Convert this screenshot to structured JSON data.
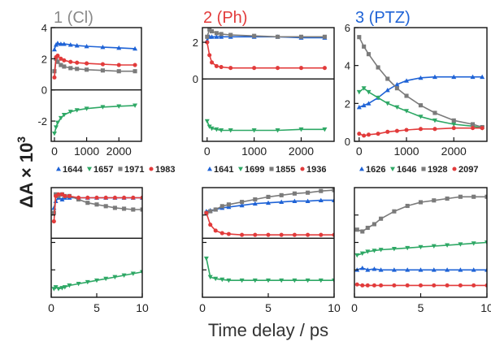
{
  "colors": {
    "blue": "#1f63d6",
    "green": "#2ea865",
    "gray": "#7b7b7b",
    "red": "#e23b3b",
    "title_gray": "#8a8a8a",
    "title_red": "#e23b3b",
    "title_blue": "#1f63d6"
  },
  "figure": {
    "ylabel_prefix": "ΔA × 10",
    "ylabel_exp": "3",
    "xlabel": "Time delay / ps",
    "panel_titles": [
      {
        "text": "1 (Cl)",
        "color": "#8a8a8a"
      },
      {
        "text": "2 (Ph)",
        "color": "#e23b3b"
      },
      {
        "text": "3 (PTZ)",
        "color": "#1f63d6"
      }
    ]
  },
  "chart_data": [
    {
      "type": "scatter",
      "title": "1 (Cl)",
      "xlim": [
        -100,
        2700
      ],
      "ylim": [
        -3.3,
        4
      ],
      "xticks": [
        0,
        1000,
        2000
      ],
      "xtick_labels": [
        "0",
        "1000",
        "2000"
      ],
      "yticks": [
        -2,
        0,
        2,
        4
      ],
      "ytick_labels": [
        "-2",
        "0",
        "2",
        "4"
      ],
      "zero_line": true,
      "legend": [
        "1644",
        "1657",
        "1971",
        "1983"
      ],
      "series": [
        {
          "name": "1644",
          "color": "#1f63d6",
          "marker": "triangle",
          "x": [
            0,
            50,
            100,
            200,
            300,
            500,
            700,
            1000,
            1500,
            2000,
            2500
          ],
          "y": [
            2.6,
            2.9,
            3.0,
            2.95,
            2.95,
            2.9,
            2.85,
            2.8,
            2.75,
            2.7,
            2.65
          ]
        },
        {
          "name": "1657",
          "color": "#2ea865",
          "marker": "triangle-down",
          "x": [
            0,
            50,
            100,
            200,
            300,
            500,
            700,
            1000,
            1500,
            2000,
            2500
          ],
          "y": [
            -2.8,
            -2.4,
            -2.1,
            -1.8,
            -1.6,
            -1.4,
            -1.3,
            -1.2,
            -1.1,
            -1.05,
            -1.0
          ]
        },
        {
          "name": "1971",
          "color": "#7b7b7b",
          "marker": "square",
          "x": [
            0,
            50,
            100,
            200,
            300,
            500,
            700,
            1000,
            1500,
            2000,
            2500
          ],
          "y": [
            1.2,
            2.0,
            1.8,
            1.6,
            1.5,
            1.4,
            1.35,
            1.3,
            1.25,
            1.2,
            1.2
          ]
        },
        {
          "name": "1983",
          "color": "#e23b3b",
          "marker": "circle",
          "x": [
            0,
            50,
            100,
            200,
            300,
            500,
            700,
            1000,
            1500,
            2000,
            2500
          ],
          "y": [
            0.8,
            2.1,
            2.2,
            2.0,
            1.9,
            1.8,
            1.75,
            1.7,
            1.65,
            1.6,
            1.6
          ]
        }
      ]
    },
    {
      "type": "scatter",
      "title": "2 (Ph)",
      "xlim": [
        -100,
        2700
      ],
      "ylim": [
        -3.4,
        2.8
      ],
      "xticks": [
        0,
        1000,
        2000
      ],
      "xtick_labels": [
        "0",
        "1000",
        "2000"
      ],
      "yticks": [
        0,
        2
      ],
      "ytick_labels": [
        "0",
        "2"
      ],
      "zero_line": true,
      "legend": [
        "1641",
        "1699",
        "1855",
        "1936"
      ],
      "series": [
        {
          "name": "1641",
          "color": "#1f63d6",
          "marker": "triangle",
          "x": [
            0,
            50,
            100,
            200,
            300,
            500,
            1000,
            1500,
            2000,
            2500
          ],
          "y": [
            2.1,
            2.3,
            2.3,
            2.3,
            2.3,
            2.3,
            2.3,
            2.3,
            2.25,
            2.25
          ]
        },
        {
          "name": "1699",
          "color": "#2ea865",
          "marker": "triangle-down",
          "x": [
            0,
            50,
            100,
            200,
            300,
            500,
            1000,
            1500,
            2000,
            2500
          ],
          "y": [
            -2.3,
            -2.6,
            -2.7,
            -2.75,
            -2.8,
            -2.8,
            -2.8,
            -2.8,
            -2.75,
            -2.75
          ]
        },
        {
          "name": "1855",
          "color": "#7b7b7b",
          "marker": "square",
          "x": [
            0,
            50,
            100,
            200,
            300,
            500,
            1000,
            1500,
            2000,
            2500
          ],
          "y": [
            2.3,
            2.7,
            2.6,
            2.5,
            2.45,
            2.4,
            2.35,
            2.3,
            2.3,
            2.3
          ]
        },
        {
          "name": "1936",
          "color": "#e23b3b",
          "marker": "circle",
          "x": [
            0,
            50,
            100,
            200,
            300,
            500,
            1000,
            1500,
            2000,
            2500
          ],
          "y": [
            2.0,
            1.3,
            0.9,
            0.7,
            0.65,
            0.6,
            0.6,
            0.6,
            0.6,
            0.6
          ]
        }
      ]
    },
    {
      "type": "scatter",
      "title": "3 (PTZ)",
      "xlim": [
        -100,
        2700
      ],
      "ylim": [
        0,
        6
      ],
      "xticks": [
        0,
        1000,
        2000
      ],
      "xtick_labels": [
        "0",
        "1000",
        "2000"
      ],
      "yticks": [
        0,
        2,
        4,
        6
      ],
      "ytick_labels": [
        "0",
        "2",
        "4",
        "6"
      ],
      "zero_line": false,
      "legend": [
        "1626",
        "1646",
        "1928",
        "2097"
      ],
      "series": [
        {
          "name": "1626",
          "color": "#1f63d6",
          "marker": "triangle",
          "x": [
            0,
            100,
            200,
            400,
            600,
            800,
            1000,
            1300,
            1600,
            2000,
            2400,
            2600
          ],
          "y": [
            1.8,
            1.9,
            2.0,
            2.3,
            2.7,
            3.0,
            3.2,
            3.35,
            3.4,
            3.4,
            3.4,
            3.4
          ]
        },
        {
          "name": "1646",
          "color": "#2ea865",
          "marker": "triangle-down",
          "x": [
            0,
            100,
            200,
            400,
            600,
            800,
            1000,
            1300,
            1600,
            2000,
            2400,
            2600
          ],
          "y": [
            2.6,
            2.8,
            2.6,
            2.3,
            2.0,
            1.8,
            1.6,
            1.3,
            1.1,
            0.9,
            0.8,
            0.7
          ]
        },
        {
          "name": "1928",
          "color": "#7b7b7b",
          "marker": "square",
          "x": [
            0,
            100,
            200,
            400,
            600,
            800,
            1000,
            1300,
            1600,
            2000,
            2400,
            2600
          ],
          "y": [
            5.5,
            5.0,
            4.6,
            3.9,
            3.3,
            2.8,
            2.4,
            1.9,
            1.5,
            1.1,
            0.9,
            0.75
          ]
        },
        {
          "name": "2097",
          "color": "#e23b3b",
          "marker": "circle",
          "x": [
            0,
            100,
            200,
            400,
            600,
            800,
            1000,
            1300,
            1600,
            2000,
            2400,
            2600
          ],
          "y": [
            0.4,
            0.3,
            0.35,
            0.4,
            0.5,
            0.55,
            0.6,
            0.65,
            0.65,
            0.7,
            0.7,
            0.7
          ]
        }
      ]
    },
    {
      "type": "scatter",
      "xlim": [
        0,
        10
      ],
      "ylim": [
        -3.5,
        3.0
      ],
      "xticks": [
        0,
        5,
        10
      ],
      "xtick_labels": [
        "0",
        "5",
        "10"
      ],
      "yticks": [],
      "ytick_labels": [],
      "zero_line": true,
      "series": [
        {
          "name": "1644",
          "color": "#1f63d6",
          "marker": "triangle",
          "x": [
            0.3,
            0.5,
            0.8,
            1.2,
            1.5,
            2.0,
            3.0,
            4.0,
            5.0,
            6.0,
            7.0,
            8.0,
            9.0,
            10.0
          ],
          "y": [
            1.8,
            2.2,
            2.4,
            2.3,
            2.4,
            2.4,
            2.4,
            2.4,
            2.4,
            2.4,
            2.4,
            2.4,
            2.4,
            2.4
          ]
        },
        {
          "name": "1657",
          "color": "#2ea865",
          "marker": "triangle-down",
          "x": [
            0.3,
            0.5,
            0.8,
            1.2,
            1.5,
            2.0,
            3.0,
            4.0,
            5.0,
            6.0,
            7.0,
            8.0,
            9.0,
            10.0
          ],
          "y": [
            -3.0,
            -2.9,
            -3.0,
            -2.95,
            -2.9,
            -2.8,
            -2.7,
            -2.6,
            -2.5,
            -2.4,
            -2.3,
            -2.2,
            -2.1,
            -2.0
          ]
        },
        {
          "name": "1971",
          "color": "#7b7b7b",
          "marker": "square",
          "x": [
            0.3,
            0.5,
            0.8,
            1.2,
            1.5,
            2.0,
            3.0,
            4.0,
            5.0,
            6.0,
            7.0,
            8.0,
            9.0,
            10.0
          ],
          "y": [
            1.5,
            2.6,
            2.5,
            2.6,
            2.5,
            2.5,
            2.3,
            2.1,
            2.0,
            1.9,
            1.8,
            1.75,
            1.7,
            1.7
          ]
        },
        {
          "name": "1983",
          "color": "#e23b3b",
          "marker": "circle",
          "x": [
            0.3,
            0.5,
            0.8,
            1.2,
            1.5,
            2.0,
            3.0,
            4.0,
            5.0,
            6.0,
            7.0,
            8.0,
            9.0,
            10.0
          ],
          "y": [
            1.0,
            2.5,
            2.6,
            2.6,
            2.5,
            2.5,
            2.4,
            2.4,
            2.4,
            2.4,
            2.4,
            2.4,
            2.4,
            2.4
          ]
        }
      ]
    },
    {
      "type": "scatter",
      "xlim": [
        0,
        10
      ],
      "ylim": [
        -3.5,
        3.0
      ],
      "xticks": [
        0,
        5,
        10
      ],
      "xtick_labels": [
        "0",
        "5",
        "10"
      ],
      "yticks": [],
      "ytick_labels": [],
      "zero_line": true,
      "series": [
        {
          "name": "1641",
          "color": "#1f63d6",
          "marker": "triangle",
          "x": [
            0.3,
            0.6,
            1.0,
            1.5,
            2.0,
            3.0,
            4.0,
            5.0,
            6.0,
            7.0,
            8.0,
            9.0,
            10.0
          ],
          "y": [
            1.6,
            1.65,
            1.7,
            1.8,
            1.85,
            1.95,
            2.05,
            2.1,
            2.15,
            2.2,
            2.2,
            2.25,
            2.25
          ]
        },
        {
          "name": "1699",
          "color": "#2ea865",
          "marker": "triangle-down",
          "x": [
            0.3,
            0.6,
            1.0,
            1.5,
            2.0,
            3.0,
            4.0,
            5.0,
            6.0,
            7.0,
            8.0,
            9.0,
            10.0
          ],
          "y": [
            -1.2,
            -2.3,
            -2.4,
            -2.45,
            -2.5,
            -2.5,
            -2.5,
            -2.5,
            -2.5,
            -2.5,
            -2.5,
            -2.5,
            -2.5
          ]
        },
        {
          "name": "1855",
          "color": "#7b7b7b",
          "marker": "square",
          "x": [
            0.3,
            0.6,
            1.0,
            1.5,
            2.0,
            3.0,
            4.0,
            5.0,
            6.0,
            7.0,
            8.0,
            9.0,
            10.0
          ],
          "y": [
            1.5,
            1.6,
            1.7,
            1.9,
            2.0,
            2.15,
            2.3,
            2.45,
            2.55,
            2.65,
            2.7,
            2.8,
            2.85
          ]
        },
        {
          "name": "1936",
          "color": "#e23b3b",
          "marker": "circle",
          "x": [
            0.3,
            0.6,
            1.0,
            1.5,
            2.0,
            3.0,
            4.0,
            5.0,
            6.0,
            7.0,
            8.0,
            9.0,
            10.0
          ],
          "y": [
            1.5,
            0.8,
            0.45,
            0.3,
            0.25,
            0.2,
            0.2,
            0.2,
            0.2,
            0.2,
            0.2,
            0.2,
            0.2
          ]
        }
      ]
    },
    {
      "type": "scatter",
      "xlim": [
        0,
        10
      ],
      "ylim": [
        -0.5,
        5.5
      ],
      "xticks": [
        0,
        5,
        10
      ],
      "xtick_labels": [
        "0",
        "5",
        "10"
      ],
      "yticks": [],
      "ytick_labels": [],
      "zero_line": false,
      "series": [
        {
          "name": "1626",
          "color": "#1f63d6",
          "marker": "triangle",
          "x": [
            0.2,
            0.6,
            1.0,
            1.5,
            2.0,
            3.0,
            4.0,
            5.0,
            6.0,
            7.0,
            8.0,
            9.0,
            10.0
          ],
          "y": [
            1.0,
            1.1,
            1.0,
            1.05,
            1.0,
            1.0,
            1.0,
            1.0,
            1.0,
            1.0,
            1.0,
            1.0,
            1.0
          ]
        },
        {
          "name": "1646",
          "color": "#2ea865",
          "marker": "triangle-down",
          "x": [
            0.2,
            0.6,
            1.0,
            1.5,
            2.0,
            3.0,
            4.0,
            5.0,
            6.0,
            7.0,
            8.0,
            9.0,
            10.0
          ],
          "y": [
            1.8,
            1.9,
            2.0,
            2.05,
            2.1,
            2.15,
            2.2,
            2.25,
            2.3,
            2.35,
            2.4,
            2.45,
            2.5
          ]
        },
        {
          "name": "1928",
          "color": "#7b7b7b",
          "marker": "square",
          "x": [
            0.2,
            0.6,
            1.0,
            1.5,
            2.0,
            3.0,
            4.0,
            5.0,
            6.0,
            7.0,
            8.0,
            9.0,
            10.0
          ],
          "y": [
            3.2,
            3.1,
            3.3,
            3.5,
            3.8,
            4.2,
            4.5,
            4.7,
            4.8,
            4.9,
            5.0,
            5.0,
            5.0
          ]
        },
        {
          "name": "2097",
          "color": "#e23b3b",
          "marker": "circle",
          "x": [
            0.2,
            0.6,
            1.0,
            1.5,
            2.0,
            3.0,
            4.0,
            5.0,
            6.0,
            7.0,
            8.0,
            9.0,
            10.0
          ],
          "y": [
            0.2,
            0.15,
            0.15,
            0.15,
            0.15,
            0.15,
            0.15,
            0.15,
            0.15,
            0.15,
            0.15,
            0.15,
            0.15
          ]
        }
      ]
    }
  ]
}
